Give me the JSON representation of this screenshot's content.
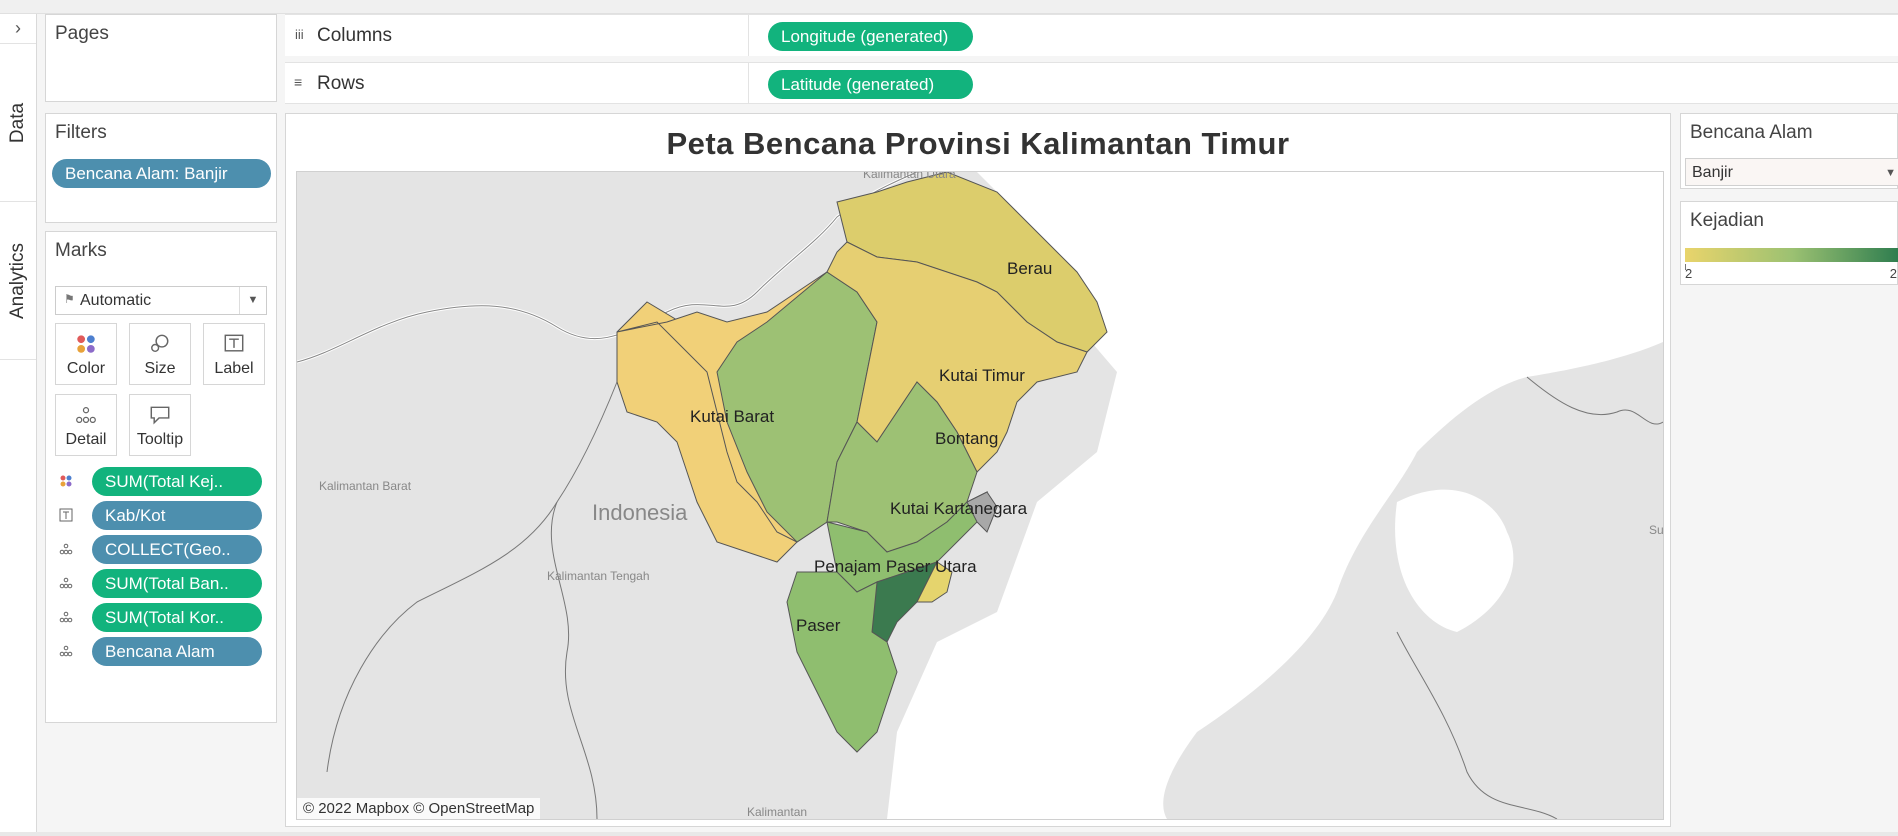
{
  "sidebar": {
    "toggle_glyph": "›",
    "tabs": [
      {
        "label": "Data"
      },
      {
        "label": "Analytics"
      }
    ]
  },
  "pages_card": {
    "title": "Pages"
  },
  "filters_card": {
    "title": "Filters",
    "pills": [
      {
        "label": "Bencana Alam: Banjir"
      }
    ]
  },
  "marks_card": {
    "title": "Marks",
    "mark_type": "Automatic",
    "buttons": [
      {
        "label": "Color",
        "icon": "color-icon"
      },
      {
        "label": "Size",
        "icon": "size-icon"
      },
      {
        "label": "Label",
        "icon": "label-icon"
      },
      {
        "label": "Detail",
        "icon": "detail-icon"
      },
      {
        "label": "Tooltip",
        "icon": "tooltip-icon"
      }
    ],
    "fields": [
      {
        "label": "SUM(Total Kej..",
        "type": "color",
        "pill": "green"
      },
      {
        "label": "Kab/Kot",
        "type": "label",
        "pill": "blue"
      },
      {
        "label": "COLLECT(Geo..",
        "type": "detail",
        "pill": "blue"
      },
      {
        "label": "SUM(Total Ban..",
        "type": "detail",
        "pill": "green"
      },
      {
        "label": "SUM(Total Kor..",
        "type": "detail",
        "pill": "green"
      },
      {
        "label": "Bencana Alam",
        "type": "detail",
        "pill": "blue"
      }
    ]
  },
  "shelves": {
    "columns": {
      "label": "Columns",
      "pill": "Longitude (generated)"
    },
    "rows": {
      "label": "Rows",
      "pill": "Latitude (generated)"
    }
  },
  "view": {
    "title": "Peta Bencana Provinsi Kalimantan Timur",
    "attribution": "© 2022 Mapbox © OpenStreetMap",
    "region_labels": [
      {
        "id": "berau",
        "text": "Berau",
        "value": 2
      },
      {
        "id": "kutai-timur",
        "text": "Kutai Timur",
        "value": 2
      },
      {
        "id": "kutai-barat",
        "text": "Kutai Barat",
        "value": 2
      },
      {
        "id": "bontang",
        "text": "Bontang",
        "value": 2
      },
      {
        "id": "kutai-kartanegara",
        "text": "Kutai Kartanegara",
        "value": 2
      },
      {
        "id": "penajam-paser-utara",
        "text": "Penajam Paser Utara",
        "value": 2
      },
      {
        "id": "paser",
        "text": "Paser",
        "value": 2
      },
      {
        "id": "mahakam-ulu",
        "text": "",
        "value": 2
      },
      {
        "id": "samarinda",
        "text": "",
        "value": 2
      },
      {
        "id": "balikpapan",
        "text": "",
        "value": 2
      }
    ],
    "basemap_labels": [
      {
        "text": "Kalimantan Utara"
      },
      {
        "text": "Kalimantan Barat"
      },
      {
        "text": "Indonesia"
      },
      {
        "text": "Kalimantan Tengah"
      },
      {
        "text": "Kalimantan"
      },
      {
        "text": "Su"
      }
    ]
  },
  "legend_filter": {
    "title": "Bencana Alam",
    "selected": "Banjir"
  },
  "legend_color": {
    "title": "Kejadian",
    "min_label": "2",
    "max_label": "2",
    "colors": [
      "#e9d46b",
      "#2e7d4f"
    ]
  },
  "colors": {
    "pill_green": "#12b37d",
    "pill_blue": "#4d8fae"
  }
}
